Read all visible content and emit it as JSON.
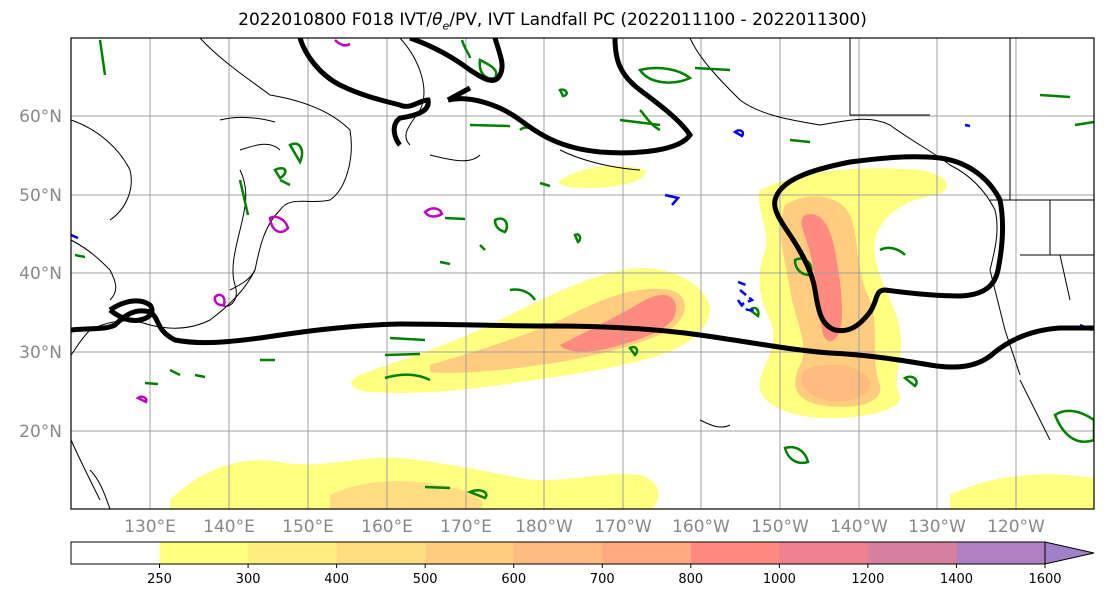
{
  "title_main": "2022010800 F018 IVT/",
  "title_symbol": "θ",
  "title_sub": "e",
  "title_rest": "/PV, IVT Landfall PC (2022011100 - 2022011300)",
  "lat_labels": [
    "60°N",
    "50°N",
    "40°N",
    "30°N",
    "20°N"
  ],
  "lon_labels": [
    "130°E",
    "140°E",
    "150°E",
    "160°E",
    "170°E",
    "180°W",
    "170°W",
    "160°W",
    "150°W",
    "140°W",
    "130°W",
    "120°W"
  ],
  "colorbar": {
    "levels": [
      "250",
      "300",
      "400",
      "500",
      "600",
      "700",
      "800",
      "1000",
      "1200",
      "1400",
      "1600"
    ],
    "colors": [
      "#ffffff",
      "#ffff80",
      "#ffee80",
      "#ffdd80",
      "#ffcc80",
      "#ffbb80",
      "#ffaa80",
      "#ff8a80",
      "#f08090",
      "#d880a0",
      "#b080c0",
      "#a080c8"
    ]
  },
  "map_colors": {
    "ocean": "#ffffff",
    "coast": "#000000",
    "ivt_low": "#ffff80",
    "ivt_mid": "#ffcc80",
    "ivt_high": "#ff8a80",
    "pc_contour": "#000000",
    "theta_contour": "#008000",
    "pv_contour": "#c000c0",
    "neg_contour": "#0000ff"
  }
}
